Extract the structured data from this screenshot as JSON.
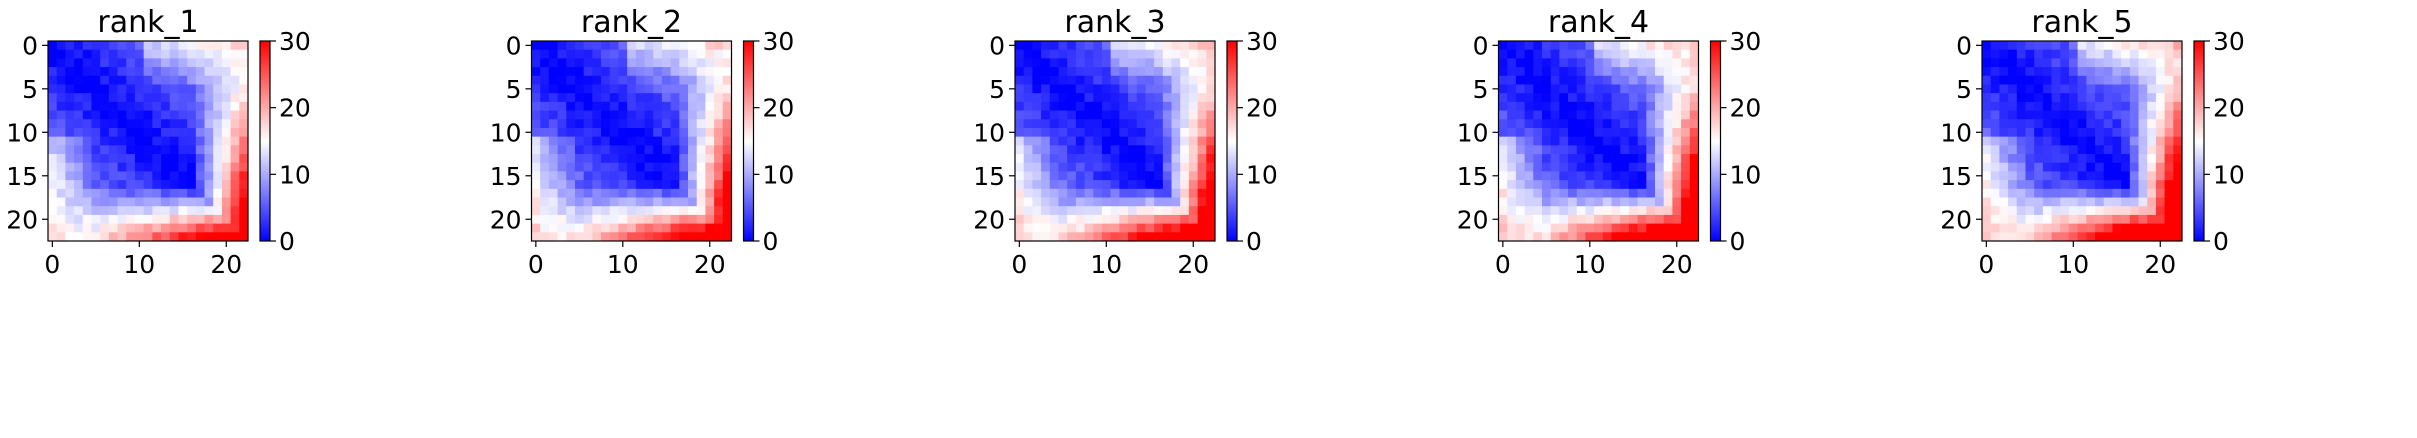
{
  "chart_data": [
    {
      "type": "heatmap",
      "title": "rank_1",
      "size": 23,
      "xticks": [
        0,
        10,
        20
      ],
      "yticks": [
        0,
        5,
        10,
        15,
        20
      ],
      "colorbar": {
        "min": 0,
        "max": 30,
        "ticks": [
          0,
          10,
          20,
          30
        ],
        "colors": [
          "#0000ff",
          "#ffffff",
          "#ff0000"
        ]
      },
      "variant": 1
    },
    {
      "type": "heatmap",
      "title": "rank_2",
      "size": 23,
      "xticks": [
        0,
        10,
        20
      ],
      "yticks": [
        0,
        5,
        10,
        15,
        20
      ],
      "colorbar": {
        "min": 0,
        "max": 30,
        "ticks": [
          0,
          10,
          20,
          30
        ],
        "colors": [
          "#0000ff",
          "#ffffff",
          "#ff0000"
        ]
      },
      "variant": 2
    },
    {
      "type": "heatmap",
      "title": "rank_3",
      "size": 23,
      "xticks": [
        0,
        10,
        20
      ],
      "yticks": [
        0,
        5,
        10,
        15,
        20
      ],
      "colorbar": {
        "min": 0,
        "max": 30,
        "ticks": [
          0,
          10,
          20,
          30
        ],
        "colors": [
          "#0000ff",
          "#ffffff",
          "#ff0000"
        ]
      },
      "variant": 3
    },
    {
      "type": "heatmap",
      "title": "rank_4",
      "size": 23,
      "xticks": [
        0,
        10,
        20
      ],
      "yticks": [
        0,
        5,
        10,
        15,
        20
      ],
      "colorbar": {
        "min": 0,
        "max": 30,
        "ticks": [
          0,
          10,
          20,
          30
        ],
        "colors": [
          "#0000ff",
          "#ffffff",
          "#ff0000"
        ]
      },
      "variant": 4
    },
    {
      "type": "heatmap",
      "title": "rank_5",
      "size": 23,
      "xticks": [
        0,
        10,
        20
      ],
      "yticks": [
        0,
        5,
        10,
        15,
        20
      ],
      "colorbar": {
        "min": 0,
        "max": 30,
        "ticks": [
          0,
          10,
          20,
          30
        ],
        "colors": [
          "#0000ff",
          "#ffffff",
          "#ff0000"
        ]
      },
      "variant": 5
    }
  ]
}
